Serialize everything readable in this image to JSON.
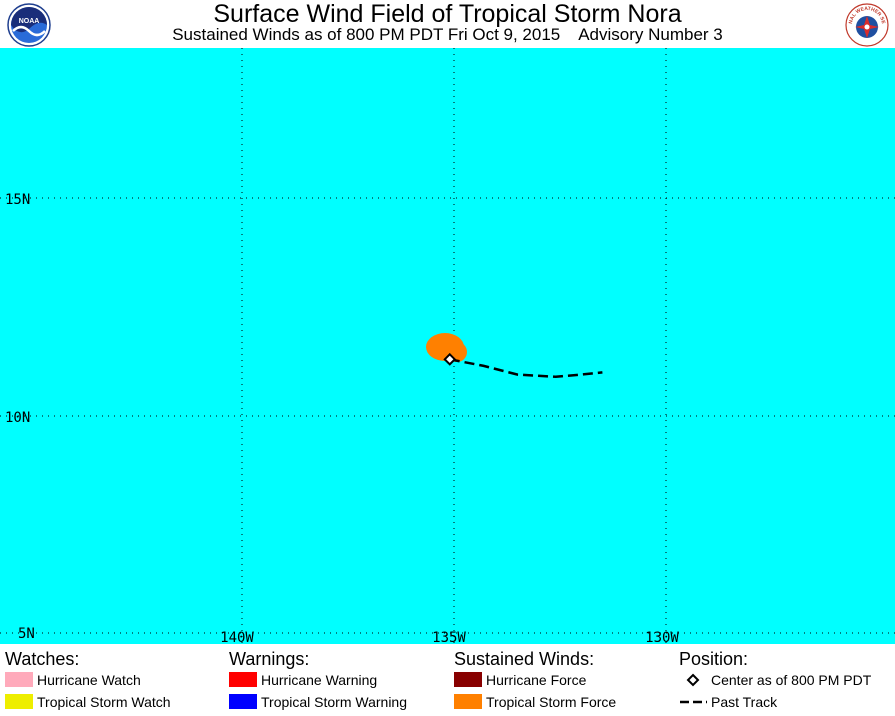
{
  "header": {
    "title": "Surface Wind Field of Tropical Storm Nora",
    "subtitle": "Sustained Winds as of 800 PM PDT Fri Oct 9, 2015    Advisory Number 3",
    "left_logo_text": "NOAA",
    "right_logo_text": "NATIONAL WEATHER SERVICE"
  },
  "map": {
    "background_color": "#00ffff",
    "lat_labels": [
      "15N",
      "10N",
      "5N"
    ],
    "lon_labels": [
      "140W",
      "135W",
      "130W"
    ],
    "grid": "dotted",
    "storm_center": {
      "lat": 11.3,
      "lon": -135.1
    },
    "past_track": [
      {
        "lat": 11.3,
        "lon": -135.1
      },
      {
        "lat": 11.15,
        "lon": -134.3
      },
      {
        "lat": 10.95,
        "lon": -133.5
      },
      {
        "lat": 10.9,
        "lon": -132.6
      },
      {
        "lat": 10.95,
        "lon": -132.0
      },
      {
        "lat": 11.0,
        "lon": -131.5
      }
    ],
    "wind_field": {
      "type": "Tropical Storm Force",
      "color": "#ff8000"
    }
  },
  "legend": {
    "watches": {
      "heading": "Watches:",
      "items": [
        {
          "label": "Hurricane Watch",
          "color": "#ffaabb"
        },
        {
          "label": "Tropical Storm Watch",
          "color": "#eeee00"
        }
      ]
    },
    "warnings": {
      "heading": "Warnings:",
      "items": [
        {
          "label": "Hurricane Warning",
          "color": "#ff0000"
        },
        {
          "label": "Tropical Storm Warning",
          "color": "#0000ff"
        }
      ]
    },
    "winds": {
      "heading": "Sustained Winds:",
      "items": [
        {
          "label": "Hurricane Force",
          "color": "#880000"
        },
        {
          "label": "Tropical Storm Force",
          "color": "#ff8000"
        }
      ]
    },
    "position": {
      "heading": "Position:",
      "items": [
        {
          "label": "Center as of 800 PM PDT",
          "icon": "diamond-icon"
        },
        {
          "label": "Past Track",
          "icon": "dashed-line-icon"
        }
      ]
    }
  }
}
